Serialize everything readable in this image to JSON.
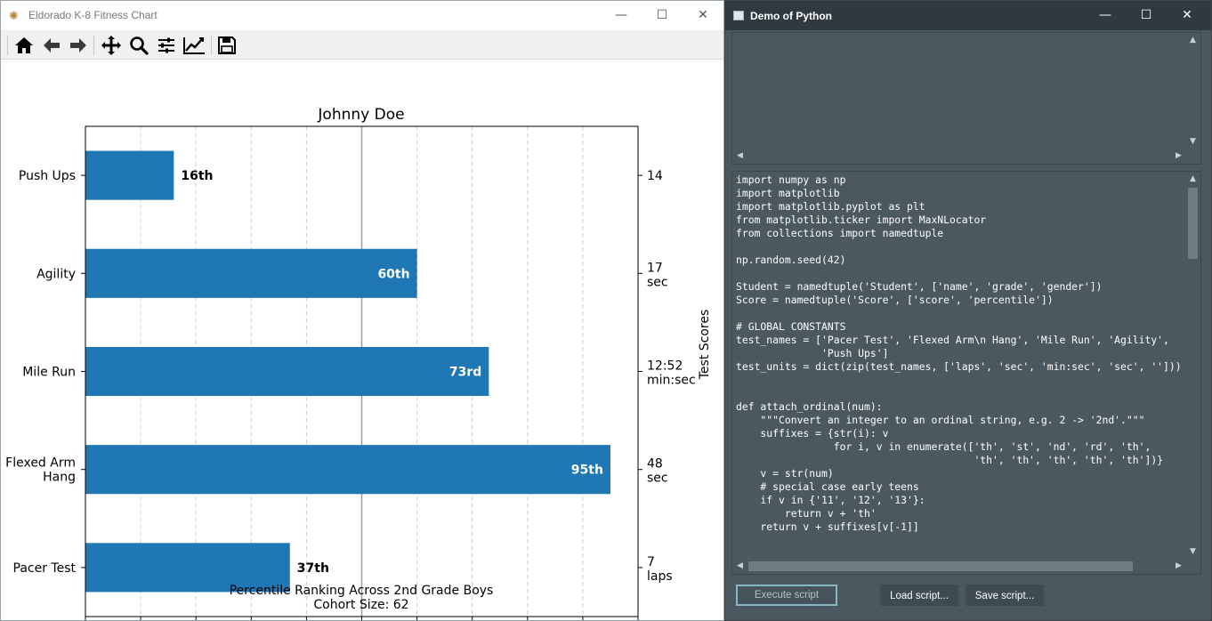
{
  "mpl_window": {
    "title": "Eldorado K-8 Fitness Chart",
    "controls": {
      "minimize": "—",
      "maximize": "☐",
      "close": "✕"
    },
    "toolbar": [
      "home-icon",
      "back-icon",
      "forward-icon",
      "pan-icon",
      "zoom-icon",
      "configure-subplots-icon",
      "edit-axis-icon",
      "save-icon"
    ]
  },
  "chart_data": {
    "type": "bar",
    "orientation": "horizontal",
    "title": "Johnny Doe",
    "xlabel_line1": "Percentile Ranking Across 2nd Grade Boys",
    "xlabel_line2": "Cohort Size: 62",
    "right_ylabel": "Test Scores",
    "categories": [
      "Pacer Test",
      "Flexed Arm Hang",
      "Mile Run",
      "Agility",
      "Push Ups"
    ],
    "category_lines": [
      [
        "Pacer Test"
      ],
      [
        "Flexed Arm",
        "Hang"
      ],
      [
        "Mile Run"
      ],
      [
        "Agility"
      ],
      [
        "Push Ups"
      ]
    ],
    "values": [
      37,
      95,
      73,
      60,
      16
    ],
    "bar_labels": [
      "37th",
      "95th",
      "73rd",
      "60th",
      "16th"
    ],
    "score_labels": [
      [
        "7",
        "laps"
      ],
      [
        "48",
        "sec"
      ],
      [
        "12:52",
        "min:sec"
      ],
      [
        "17",
        "sec"
      ],
      [
        "14",
        ""
      ]
    ],
    "xlim": [
      0,
      100
    ],
    "xticks": [
      0,
      10,
      20,
      30,
      40,
      50,
      60,
      70,
      80,
      90,
      100
    ],
    "median_line": 50,
    "grid": "vertical dashed",
    "bar_color": "#1f77b4"
  },
  "py_window": {
    "title": "Demo of Python",
    "controls": {
      "minimize": "—",
      "maximize": "☐",
      "close": "✕"
    },
    "output": "",
    "code": "import numpy as np\nimport matplotlib\nimport matplotlib.pyplot as plt\nfrom matplotlib.ticker import MaxNLocator\nfrom collections import namedtuple\n\nnp.random.seed(42)\n\nStudent = namedtuple('Student', ['name', 'grade', 'gender'])\nScore = namedtuple('Score', ['score', 'percentile'])\n\n# GLOBAL CONSTANTS\ntest_names = ['Pacer Test', 'Flexed Arm\\n Hang', 'Mile Run', 'Agility',\n              'Push Ups']\ntest_units = dict(zip(test_names, ['laps', 'sec', 'min:sec', 'sec', '']))\n\n\ndef attach_ordinal(num):\n    \"\"\"Convert an integer to an ordinal string, e.g. 2 -> '2nd'.\"\"\"\n    suffixes = {str(i): v\n                for i, v in enumerate(['th', 'st', 'nd', 'rd', 'th',\n                                       'th', 'th', 'th', 'th', 'th'])}\n    v = str(num)\n    # special case early teens\n    if v in {'11', '12', '13'}:\n        return v + 'th'\n    return v + suffixes[v[-1]]",
    "buttons": {
      "execute": "Execute script",
      "load": "Load script...",
      "save": "Save script..."
    }
  }
}
